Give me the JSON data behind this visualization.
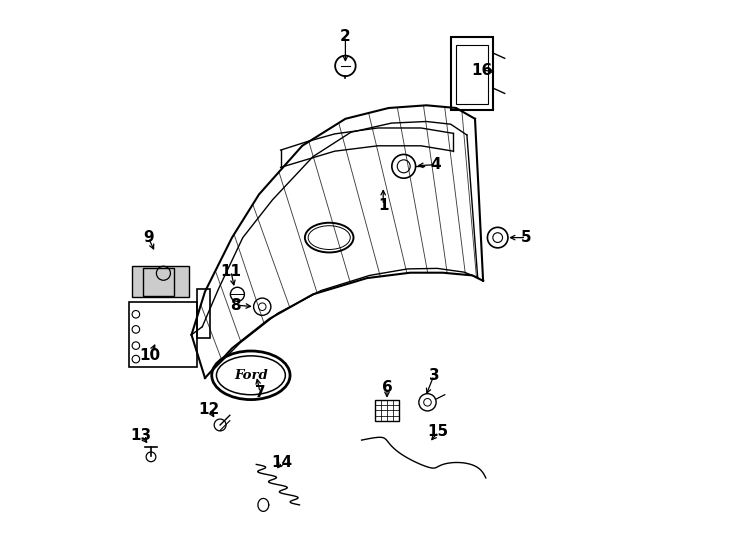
{
  "bg_color": "#ffffff",
  "line_color": "#000000",
  "label_positions": {
    "1": [
      0.53,
      0.38,
      0.53,
      0.345
    ],
    "2": [
      0.46,
      0.067,
      0.46,
      0.12
    ],
    "3": [
      0.624,
      0.695,
      0.608,
      0.735
    ],
    "4": [
      0.628,
      0.305,
      0.588,
      0.307
    ],
    "5": [
      0.795,
      0.44,
      0.758,
      0.44
    ],
    "6": [
      0.537,
      0.717,
      0.537,
      0.742
    ],
    "7": [
      0.302,
      0.727,
      0.295,
      0.695
    ],
    "8": [
      0.257,
      0.565,
      0.292,
      0.568
    ],
    "9": [
      0.095,
      0.44,
      0.108,
      0.468
    ],
    "10": [
      0.098,
      0.659,
      0.11,
      0.632
    ],
    "11": [
      0.248,
      0.502,
      0.255,
      0.535
    ],
    "12": [
      0.208,
      0.758,
      0.22,
      0.778
    ],
    "13": [
      0.082,
      0.807,
      0.097,
      0.825
    ],
    "14": [
      0.343,
      0.856,
      0.33,
      0.872
    ],
    "15": [
      0.632,
      0.8,
      0.615,
      0.82
    ],
    "16": [
      0.713,
      0.13,
      0.742,
      0.133
    ]
  }
}
